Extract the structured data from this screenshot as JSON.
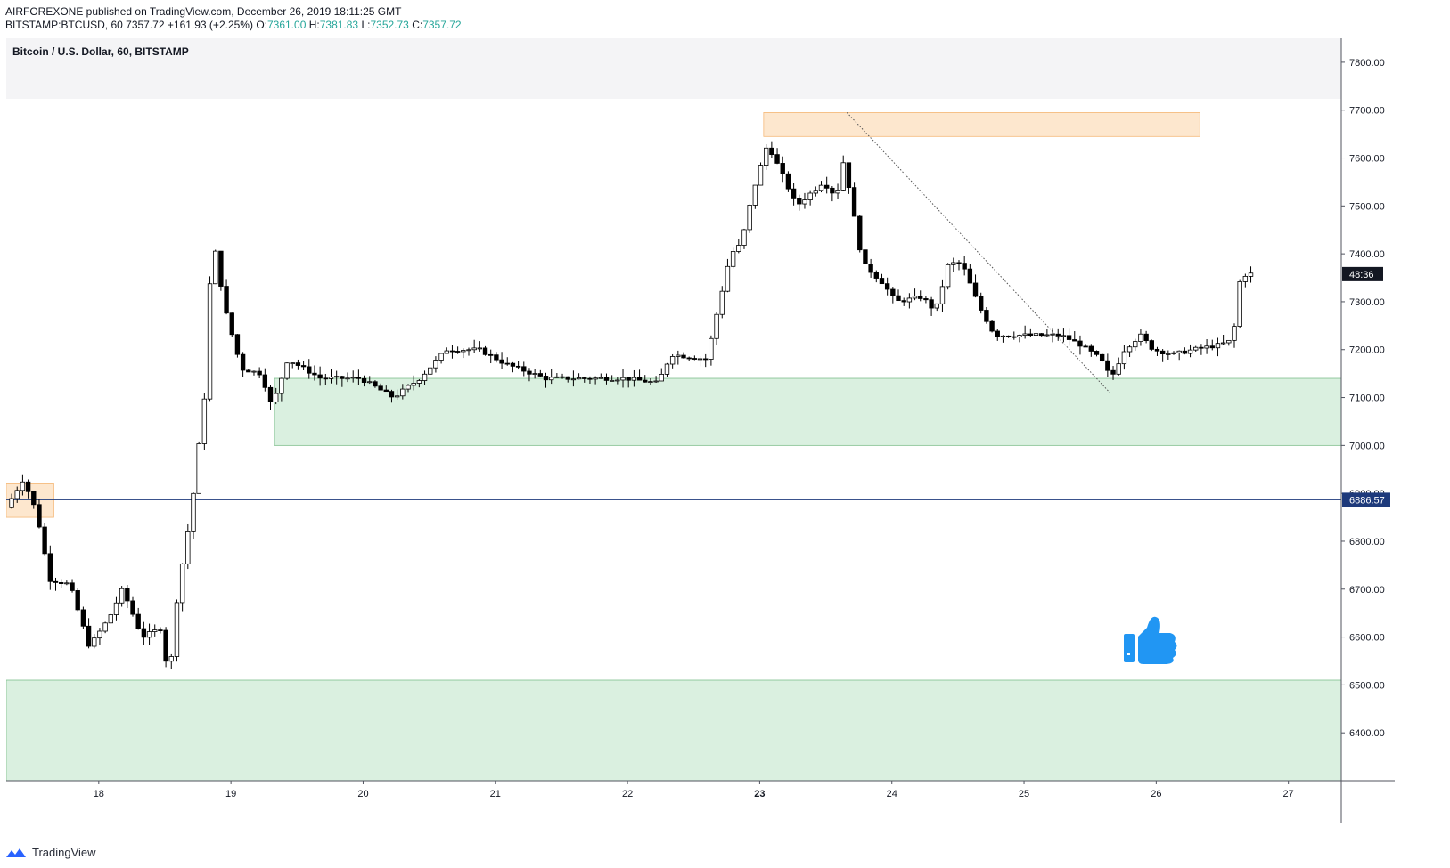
{
  "header": {
    "publisher": "AIRFOREXONE published on TradingView.com, December 26, 2019 18:11:25 GMT",
    "symbol": "BITSTAMP:BTCUSD, 60",
    "last": "7357.72",
    "change": "+161.93 (+2.25%)",
    "o_label": "O:",
    "o_value": "7361.00",
    "h_label": "H:",
    "h_value": "7381.83",
    "l_label": "L:",
    "l_value": "7352.73",
    "c_label": "C:",
    "c_value": "7357.72"
  },
  "chart_title": "Bitcoin / U.S. Dollar, 60, BITSTAMP",
  "footer": {
    "brand": "TradingView"
  },
  "colors": {
    "up": "#ffffff",
    "down": "#000000",
    "wick": "#000000",
    "support_zone": "#d4edda",
    "resistance_zone": "#fde3c6",
    "hline": "#1e3a7b",
    "price_badge_bg": "#131722",
    "level_badge_bg": "#1e3a7b",
    "thumb": "#2196f3"
  },
  "icons": {
    "thumbs_up": "thumbs-up-icon",
    "logo": "tradingview-logo-icon"
  },
  "chart_data": {
    "type": "candlestick",
    "title": "Bitcoin / U.S. Dollar, 60, BITSTAMP",
    "y_axis": {
      "min": 6300,
      "max": 7850,
      "ticks": [
        "7800.00",
        "7700.00",
        "7600.00",
        "7500.00",
        "7400.00",
        "7300.00",
        "7200.00",
        "7100.00",
        "7000.00",
        "6900.00",
        "6800.00",
        "6700.00",
        "6600.00",
        "6500.00",
        "6400.00"
      ]
    },
    "x_axis": {
      "labels": [
        "18",
        "19",
        "20",
        "21",
        "22",
        "23",
        "24",
        "25",
        "26",
        "27"
      ],
      "bold_label": "23",
      "start_day": 17.3,
      "end_day": 27.4
    },
    "last_price_label": "48:36",
    "last_price": 7357.72,
    "horizontal_line": {
      "price": 6886.57,
      "label": "6886.57"
    },
    "zones": [
      {
        "kind": "resistance",
        "x_from": 17.3,
        "x_to": 17.66,
        "y_from": 6850,
        "y_to": 6920
      },
      {
        "kind": "resistance",
        "x_from": 23.03,
        "x_to": 26.33,
        "y_from": 7645,
        "y_to": 7695
      },
      {
        "kind": "support",
        "x_from": 19.33,
        "x_to": 27.4,
        "y_from": 7000,
        "y_to": 7140
      },
      {
        "kind": "support",
        "x_from": 17.3,
        "x_to": 27.4,
        "y_from": 6300,
        "y_to": 6510
      }
    ],
    "trendline": {
      "from": [
        23.66,
        7695
      ],
      "to": [
        24.59,
        7430
      ],
      "to2": [
        25.65,
        7110
      ]
    },
    "waypoints": [
      [
        17.32,
        6870
      ],
      [
        17.45,
        6930
      ],
      [
        17.55,
        6860
      ],
      [
        17.65,
        6720
      ],
      [
        17.8,
        6710
      ],
      [
        17.95,
        6580
      ],
      [
        18.1,
        6640
      ],
      [
        18.2,
        6700
      ],
      [
        18.35,
        6600
      ],
      [
        18.5,
        6620
      ],
      [
        18.55,
        6500
      ],
      [
        18.62,
        6700
      ],
      [
        18.72,
        6860
      ],
      [
        18.82,
        7100
      ],
      [
        18.88,
        7440
      ],
      [
        18.98,
        7280
      ],
      [
        19.1,
        7160
      ],
      [
        19.25,
        7150
      ],
      [
        19.33,
        7080
      ],
      [
        19.45,
        7180
      ],
      [
        19.7,
        7140
      ],
      [
        20.0,
        7140
      ],
      [
        20.25,
        7100
      ],
      [
        20.45,
        7140
      ],
      [
        20.65,
        7200
      ],
      [
        20.9,
        7200
      ],
      [
        21.1,
        7170
      ],
      [
        21.4,
        7140
      ],
      [
        21.7,
        7140
      ],
      [
        22.0,
        7140
      ],
      [
        22.25,
        7130
      ],
      [
        22.35,
        7190
      ],
      [
        22.62,
        7180
      ],
      [
        22.7,
        7280
      ],
      [
        22.8,
        7400
      ],
      [
        22.88,
        7420
      ],
      [
        22.97,
        7530
      ],
      [
        23.08,
        7630
      ],
      [
        23.2,
        7560
      ],
      [
        23.3,
        7500
      ],
      [
        23.5,
        7550
      ],
      [
        23.6,
        7520
      ],
      [
        23.66,
        7600
      ],
      [
        23.72,
        7500
      ],
      [
        23.8,
        7380
      ],
      [
        23.95,
        7340
      ],
      [
        24.05,
        7300
      ],
      [
        24.25,
        7310
      ],
      [
        24.35,
        7280
      ],
      [
        24.45,
        7380
      ],
      [
        24.55,
        7380
      ],
      [
        24.68,
        7290
      ],
      [
        24.8,
        7230
      ],
      [
        24.95,
        7230
      ],
      [
        25.1,
        7230
      ],
      [
        25.3,
        7230
      ],
      [
        25.45,
        7210
      ],
      [
        25.6,
        7180
      ],
      [
        25.68,
        7140
      ],
      [
        25.78,
        7200
      ],
      [
        25.9,
        7230
      ],
      [
        26.0,
        7200
      ],
      [
        26.15,
        7190
      ],
      [
        26.3,
        7200
      ],
      [
        26.5,
        7210
      ],
      [
        26.6,
        7220
      ],
      [
        26.65,
        7340
      ],
      [
        26.7,
        7358
      ]
    ]
  }
}
